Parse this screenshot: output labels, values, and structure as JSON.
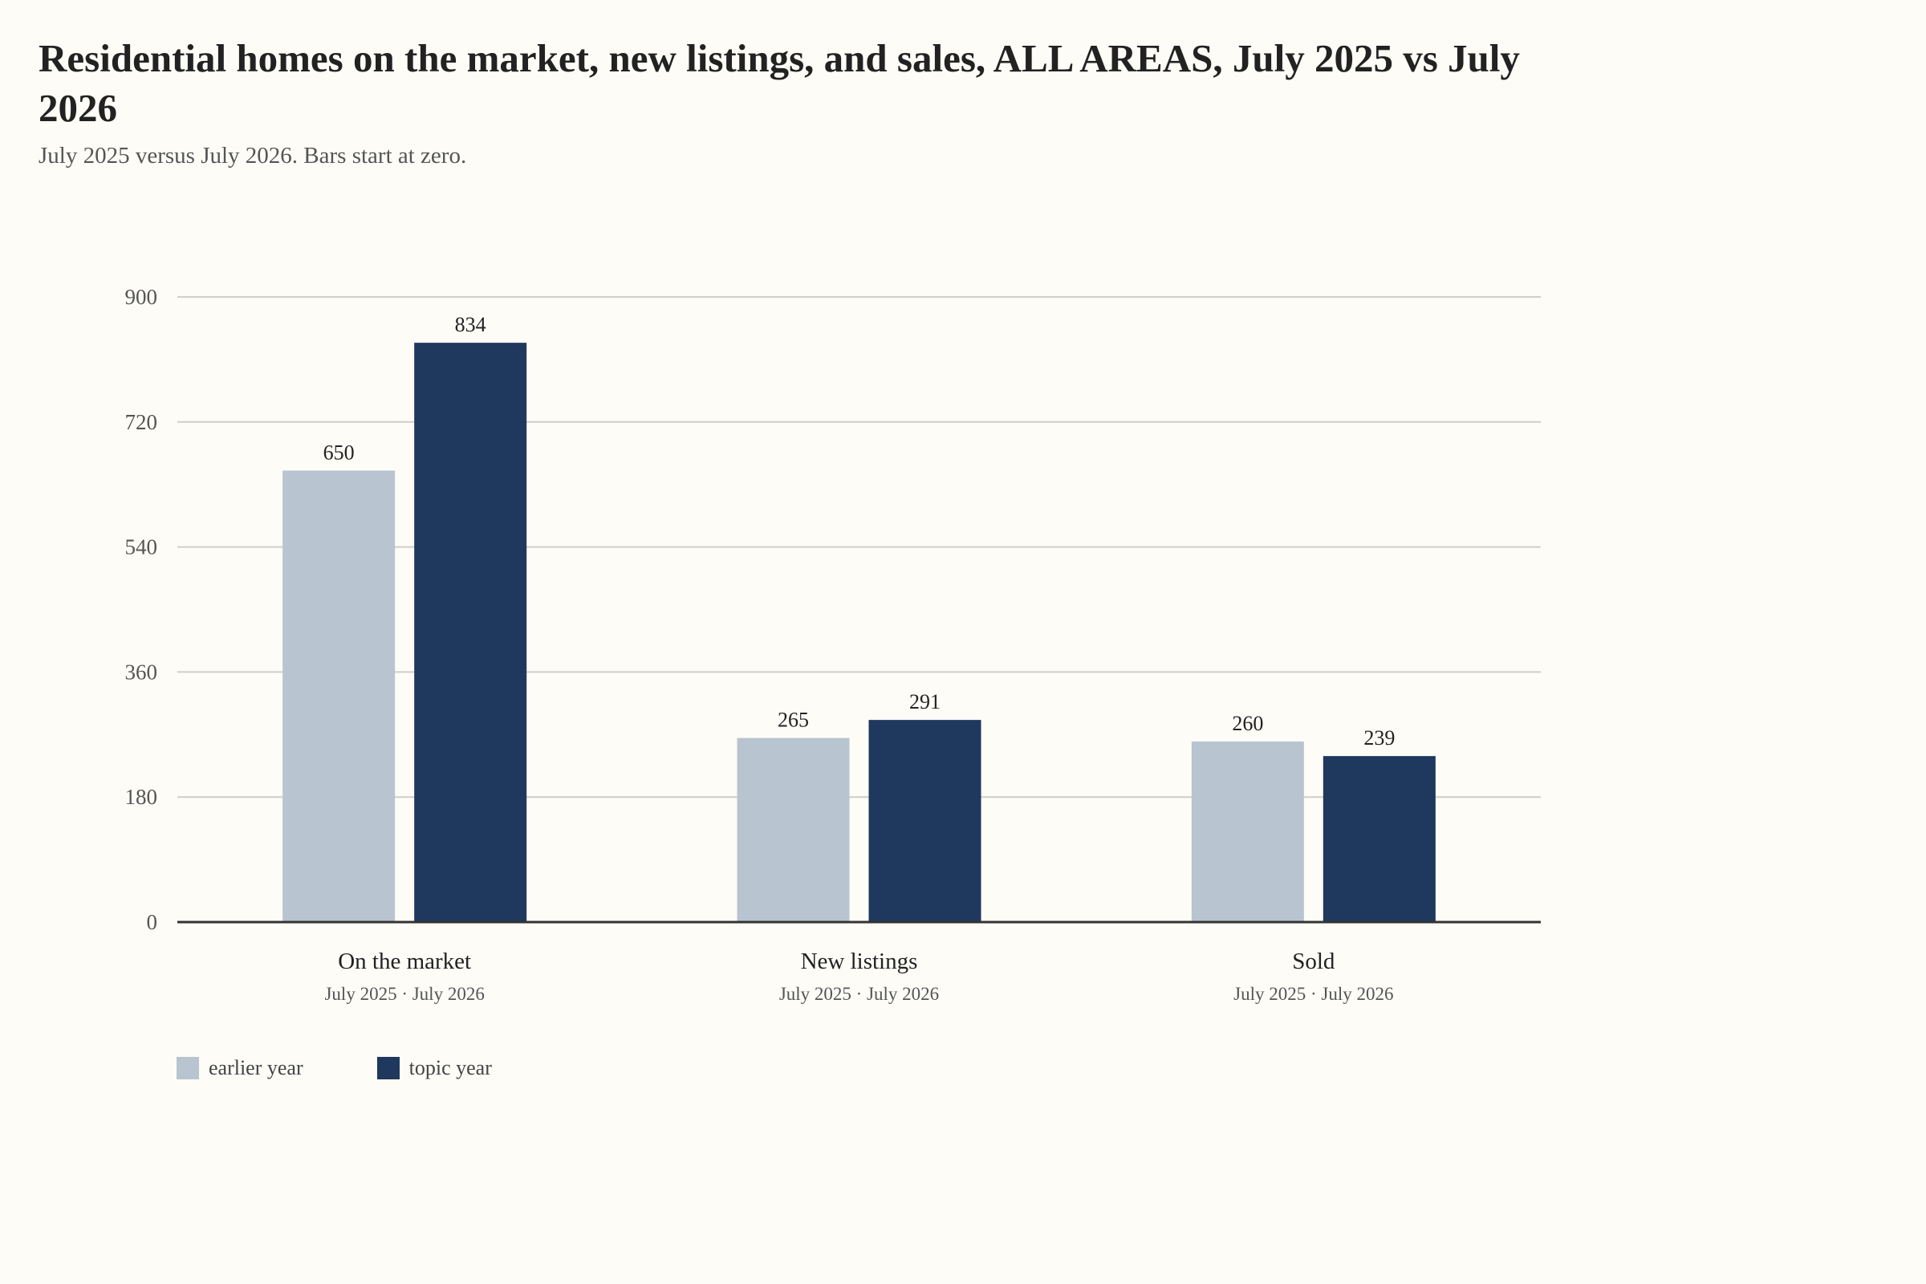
{
  "header": {
    "title": "Residential homes on the market, new listings, and sales, ALL AREAS, July 2025 vs July 2026",
    "subtitle": "July 2025 versus July 2026. Bars start at zero."
  },
  "colors": {
    "background": "#fdfcf7",
    "earlier_year": "#b8c4d0",
    "topic_year": "#1f385d",
    "gridline": "#cfcfc8",
    "baseline": "#333333",
    "tick_text": "#555555",
    "label_text": "#222222"
  },
  "legend": {
    "placement": "bottom-left",
    "items": [
      {
        "label": "earlier year",
        "color": "#b8c4d0"
      },
      {
        "label": "topic year",
        "color": "#1f385d"
      }
    ]
  },
  "chart_data": {
    "type": "bar",
    "title": "Residential homes on the market, new listings, and sales, ALL AREAS, July 2025 vs July 2026",
    "subtitle": "July 2025 versus July 2026. Bars start at zero.",
    "xlabel": "",
    "ylabel": "",
    "ylim": [
      0,
      900
    ],
    "yticks": [
      0,
      180,
      360,
      540,
      720,
      900
    ],
    "grid": true,
    "legend_placement": "bottom-left",
    "categories": [
      "On the market",
      "New listings",
      "Sold"
    ],
    "category_sublabel": "July 2025 · July 2026",
    "series": [
      {
        "name": "earlier year",
        "values": [
          650,
          265,
          260
        ],
        "color": "#b8c4d0"
      },
      {
        "name": "topic year",
        "values": [
          834,
          291,
          239
        ],
        "color": "#1f385d"
      }
    ]
  }
}
